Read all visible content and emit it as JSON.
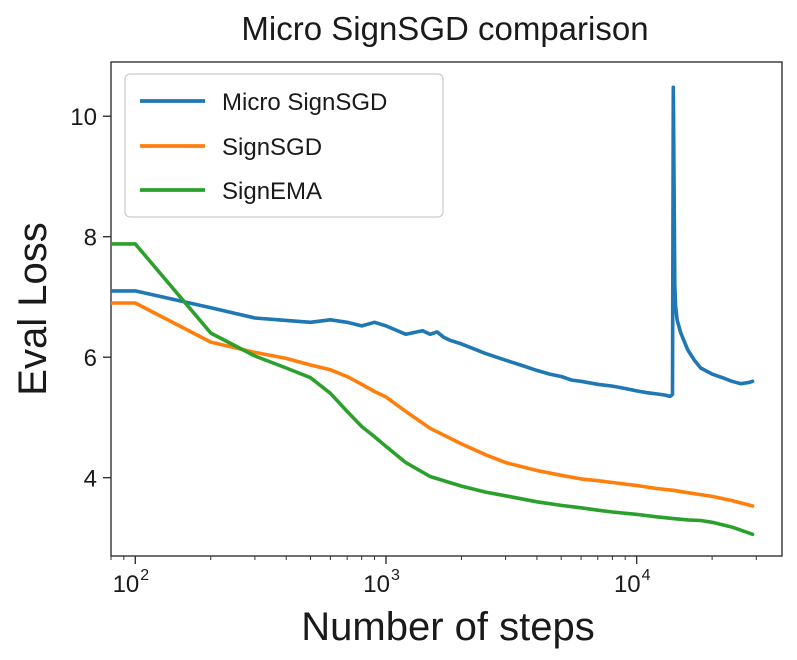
{
  "chart_data": {
    "type": "line",
    "title": "Micro SignSGD comparison",
    "xlabel": "Number of steps",
    "ylabel": "Eval Loss",
    "xscale": "log",
    "xlim": [
      80,
      38000
    ],
    "ylim": [
      2.7,
      10.9
    ],
    "xticks": [
      {
        "value": 100,
        "base": "10",
        "exponent": "2"
      },
      {
        "value": 1000,
        "base": "10",
        "exponent": "3"
      },
      {
        "value": 10000,
        "base": "10",
        "exponent": "4"
      }
    ],
    "yticks": [
      {
        "value": 4,
        "label": "4"
      },
      {
        "value": 6,
        "label": "6"
      },
      {
        "value": 8,
        "label": "8"
      },
      {
        "value": 10,
        "label": "10"
      }
    ],
    "legend": {
      "position": "upper-left",
      "entries": [
        "Micro SignSGD",
        "SignSGD",
        "SignEMA"
      ]
    },
    "series": [
      {
        "name": "Micro SignSGD",
        "color": "#1f77b4",
        "x": [
          80,
          100,
          200,
          300,
          400,
          500,
          600,
          700,
          800,
          900,
          1000,
          1200,
          1400,
          1500,
          1600,
          1700,
          1800,
          2000,
          2500,
          3000,
          3500,
          4000,
          4500,
          5000,
          5500,
          6000,
          7000,
          8000,
          9000,
          10000,
          11000,
          12000,
          13000,
          13600,
          13900,
          14000,
          14100,
          14200,
          14300,
          14500,
          15000,
          16000,
          17000,
          18000,
          20000,
          22000,
          24000,
          26000,
          28000,
          29000
        ],
        "y": [
          7.1,
          7.1,
          6.82,
          6.65,
          6.61,
          6.58,
          6.62,
          6.58,
          6.52,
          6.58,
          6.52,
          6.38,
          6.44,
          6.38,
          6.42,
          6.33,
          6.28,
          6.22,
          6.06,
          5.95,
          5.86,
          5.78,
          5.72,
          5.68,
          5.62,
          5.6,
          5.55,
          5.52,
          5.48,
          5.44,
          5.41,
          5.39,
          5.37,
          5.35,
          5.38,
          10.48,
          8.8,
          7.2,
          6.85,
          6.62,
          6.4,
          6.12,
          5.95,
          5.82,
          5.72,
          5.66,
          5.6,
          5.56,
          5.58,
          5.6
        ]
      },
      {
        "name": "SignSGD",
        "color": "#ff7f0e",
        "x": [
          80,
          100,
          200,
          300,
          400,
          500,
          600,
          700,
          800,
          900,
          1000,
          1200,
          1500,
          2000,
          2500,
          3000,
          4000,
          5000,
          6000,
          7000,
          8000,
          10000,
          12000,
          14000,
          16000,
          18000,
          20000,
          24000,
          29000
        ],
        "y": [
          6.9,
          6.9,
          6.25,
          6.08,
          5.98,
          5.87,
          5.79,
          5.68,
          5.55,
          5.43,
          5.34,
          5.1,
          4.82,
          4.56,
          4.38,
          4.25,
          4.12,
          4.04,
          3.98,
          3.95,
          3.92,
          3.87,
          3.82,
          3.79,
          3.75,
          3.72,
          3.69,
          3.62,
          3.53
        ]
      },
      {
        "name": "SignEMA",
        "color": "#2ca02c",
        "x": [
          80,
          100,
          200,
          300,
          400,
          500,
          600,
          700,
          800,
          900,
          1000,
          1200,
          1500,
          2000,
          2500,
          3000,
          4000,
          5000,
          6000,
          7000,
          8000,
          10000,
          12000,
          14000,
          16000,
          18000,
          20000,
          24000,
          29000
        ],
        "y": [
          7.88,
          7.88,
          6.4,
          6.02,
          5.82,
          5.66,
          5.4,
          5.1,
          4.85,
          4.68,
          4.52,
          4.25,
          4.02,
          3.86,
          3.76,
          3.7,
          3.6,
          3.54,
          3.5,
          3.46,
          3.43,
          3.39,
          3.35,
          3.32,
          3.3,
          3.29,
          3.26,
          3.18,
          3.06
        ]
      }
    ]
  }
}
